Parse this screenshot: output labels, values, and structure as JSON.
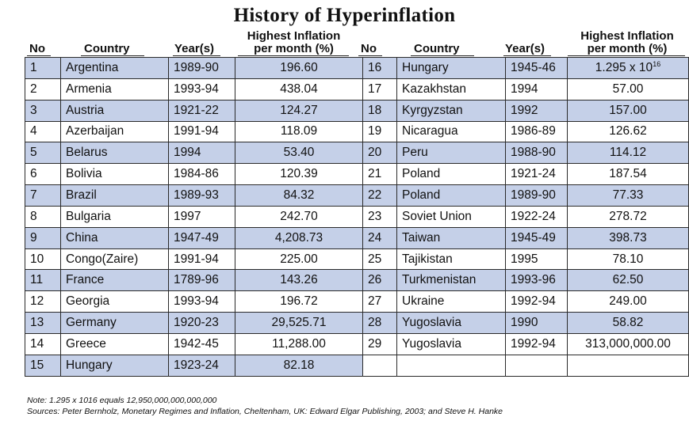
{
  "title": "History of Hyperinflation",
  "headers": {
    "no": "No",
    "country": "Country",
    "years": "Year(s)",
    "inflation_line1": "Highest Inflation",
    "inflation_line2": "per month (%)"
  },
  "rows": [
    {
      "no": "1",
      "country": "Argentina",
      "years": "1989-90",
      "value": "196.60",
      "no2": "16",
      "country2": "Hungary",
      "years2": "1945-46",
      "value2_base": "1.295 x 10",
      "value2_sup": "16"
    },
    {
      "no": "2",
      "country": "Armenia",
      "years": "1993-94",
      "value": "438.04",
      "no2": "17",
      "country2": "Kazakhstan",
      "years2": "1994",
      "value2": "57.00"
    },
    {
      "no": "3",
      "country": "Austria",
      "years": "1921-22",
      "value": "124.27",
      "no2": "18",
      "country2": "Kyrgyzstan",
      "years2": "1992",
      "value2": "157.00"
    },
    {
      "no": "4",
      "country": "Azerbaijan",
      "years": "1991-94",
      "value": "118.09",
      "no2": "19",
      "country2": "Nicaragua",
      "years2": "1986-89",
      "value2": "126.62"
    },
    {
      "no": "5",
      "country": "Belarus",
      "years": "1994",
      "value": "53.40",
      "no2": "20",
      "country2": "Peru",
      "years2": "1988-90",
      "value2": "114.12"
    },
    {
      "no": "6",
      "country": "Bolivia",
      "years": "1984-86",
      "value": "120.39",
      "no2": "21",
      "country2": "Poland",
      "years2": "1921-24",
      "value2": "187.54"
    },
    {
      "no": "7",
      "country": "Brazil",
      "years": "1989-93",
      "value": "84.32",
      "no2": "22",
      "country2": "Poland",
      "years2": "1989-90",
      "value2": "77.33"
    },
    {
      "no": "8",
      "country": "Bulgaria",
      "years": "1997",
      "value": "242.70",
      "no2": "23",
      "country2": "Soviet Union",
      "years2": "1922-24",
      "value2": "278.72"
    },
    {
      "no": "9",
      "country": "China",
      "years": "1947-49",
      "value": "4,208.73",
      "no2": "24",
      "country2": "Taiwan",
      "years2": "1945-49",
      "value2": "398.73"
    },
    {
      "no": "10",
      "country": "Congo(Zaire)",
      "years": "1991-94",
      "value": "225.00",
      "no2": "25",
      "country2": "Tajikistan",
      "years2": "1995",
      "value2": "78.10"
    },
    {
      "no": "11",
      "country": "France",
      "years": "1789-96",
      "value": "143.26",
      "no2": "26",
      "country2": "Turkmenistan",
      "years2": "1993-96",
      "value2": "62.50"
    },
    {
      "no": "12",
      "country": "Georgia",
      "years": "1993-94",
      "value": "196.72",
      "no2": "27",
      "country2": "Ukraine",
      "years2": "1992-94",
      "value2": "249.00"
    },
    {
      "no": "13",
      "country": "Germany",
      "years": "1920-23",
      "value": "29,525.71",
      "no2": "28",
      "country2": "Yugoslavia",
      "years2": "1990",
      "value2": "58.82"
    },
    {
      "no": "14",
      "country": "Greece",
      "years": "1942-45",
      "value": "11,288.00",
      "no2": "29",
      "country2": "Yugoslavia",
      "years2": "1992-94",
      "value2": "313,000,000.00"
    },
    {
      "no": "15",
      "country": "Hungary",
      "years": "1923-24",
      "value": "82.18"
    }
  ],
  "note": "Note: 1.295 x 1016 equals 12,950,000,000,000,000",
  "sources": "Sources: Peter Bernholz, Monetary Regimes and Inflation, Cheltenham, UK: Edward Elgar Publishing, 2003; and Steve H. Hanke",
  "colors": {
    "band": "#c5d0e8",
    "border": "#2a2a2a"
  }
}
